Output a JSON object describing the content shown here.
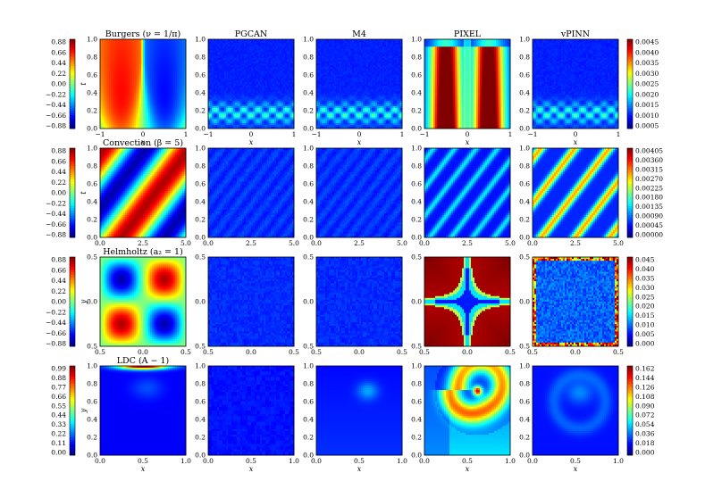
{
  "colors": {
    "frame": "#000000",
    "background": "#ffffff",
    "colormap": "jet"
  },
  "chart_data": [
    {
      "type": "heatmap",
      "row": "Burgers",
      "panels": [
        {
          "title": "Burgers ($\\nu = \\frac{1}{\\pi}$)",
          "pattern": "burgers_field"
        },
        {
          "title": "PGCAN",
          "pattern": "burgers_err_small"
        },
        {
          "title": "M4",
          "pattern": "burgers_err_small"
        },
        {
          "title": "PIXEL",
          "pattern": "burgers_err_large"
        },
        {
          "title": "vPINN",
          "pattern": "burgers_err_small"
        }
      ],
      "xlabel": "x",
      "ylabel": "t",
      "x_ticks": [
        "−1",
        "0",
        "1"
      ],
      "y_ticks": [
        "0.0",
        "0.2",
        "0.4",
        "0.6",
        "0.8",
        "1.0"
      ],
      "field_colorbar": {
        "ticks": [
          "0.88",
          "0.66",
          "0.44",
          "0.22",
          "0.00",
          "−0.22",
          "−0.44",
          "−0.66",
          "−0.88"
        ],
        "range": [
          -1.0,
          1.0
        ]
      },
      "error_colorbar": {
        "ticks": [
          "0.0045",
          "0.0040",
          "0.0035",
          "0.0030",
          "0.0025",
          "0.0020",
          "0.0015",
          "0.0010",
          "0.0005"
        ],
        "range": [
          0.0,
          0.0048
        ]
      }
    },
    {
      "type": "heatmap",
      "row": "Convection",
      "panels": [
        {
          "title": "Convection ($\\beta = 5$)",
          "pattern": "convection_field"
        },
        {
          "title": "",
          "pattern": "convection_err_faint"
        },
        {
          "title": "",
          "pattern": "convection_err_faint"
        },
        {
          "title": "",
          "pattern": "convection_err_medium"
        },
        {
          "title": "",
          "pattern": "convection_err_strong"
        }
      ],
      "xlabel": "",
      "ylabel": "t",
      "x_ticks": [
        "0.0",
        "2.5",
        "5.0"
      ],
      "y_ticks": [
        "0.0",
        "0.2",
        "0.4",
        "0.6",
        "0.8",
        "1.0"
      ],
      "field_colorbar": {
        "ticks": [
          "0.88",
          "0.66",
          "0.44",
          "0.22",
          "0.00",
          "−0.22",
          "−0.44",
          "−0.66",
          "−0.88"
        ],
        "range": [
          -1.0,
          1.0
        ]
      },
      "error_colorbar": {
        "ticks": [
          "0.00405",
          "0.00360",
          "0.00315",
          "0.00270",
          "0.00225",
          "0.00180",
          "0.00135",
          "0.00090",
          "0.00045",
          "0.00000"
        ],
        "range": [
          0.0,
          0.0045
        ]
      }
    },
    {
      "type": "heatmap",
      "row": "Helmholtz",
      "panels": [
        {
          "title": "Helmholtz ($a_2 = 1$)",
          "pattern": "helmholtz_field"
        },
        {
          "title": "",
          "pattern": "helmholtz_err_faint"
        },
        {
          "title": "",
          "pattern": "helmholtz_err_faint"
        },
        {
          "title": "",
          "pattern": "helmholtz_err_large"
        },
        {
          "title": "",
          "pattern": "helmholtz_err_noise"
        }
      ],
      "xlabel": "",
      "ylabel": "y",
      "x_ticks": [
        "0.5",
        "0.0",
        "0.5"
      ],
      "y_ticks": [
        "0.5",
        "0.0",
        "0.5"
      ],
      "field_colorbar": {
        "ticks": [
          "0.88",
          "0.66",
          "0.44",
          "0.22",
          "0.00",
          "−0.22",
          "−0.44",
          "−0.66",
          "−0.88"
        ],
        "range": [
          -1.0,
          1.0
        ]
      },
      "error_colorbar": {
        "ticks": [
          "0.045",
          "0.040",
          "0.035",
          "0.030",
          "0.025",
          "0.020",
          "0.015",
          "0.010",
          "0.005",
          "0.000"
        ],
        "range": [
          0.0,
          0.046
        ]
      }
    },
    {
      "type": "heatmap",
      "row": "LDC",
      "panels": [
        {
          "title": "LDC ($A - 1$)",
          "pattern": "ldc_field"
        },
        {
          "title": "",
          "pattern": "ldc_err_faint"
        },
        {
          "title": "",
          "pattern": "ldc_err_small"
        },
        {
          "title": "",
          "pattern": "ldc_err_large"
        },
        {
          "title": "",
          "pattern": "ldc_err_medium"
        }
      ],
      "xlabel": "x",
      "ylabel": "y",
      "x_ticks": [
        "0.0",
        "0.5",
        "1.0"
      ],
      "y_ticks": [
        "0.0",
        "0.2",
        "0.4",
        "0.6",
        "0.8",
        "1.0"
      ],
      "field_colorbar": {
        "ticks": [
          "0.99",
          "0.88",
          "0.77",
          "0.66",
          "0.55",
          "0.44",
          "0.33",
          "0.22",
          "0.11",
          "0.00"
        ],
        "range": [
          0.0,
          1.0
        ]
      },
      "error_colorbar": {
        "ticks": [
          "0.162",
          "0.144",
          "0.126",
          "0.108",
          "0.090",
          "0.072",
          "0.054",
          "0.036",
          "0.018",
          "0.000"
        ],
        "range": [
          0.0,
          0.162
        ]
      }
    }
  ]
}
